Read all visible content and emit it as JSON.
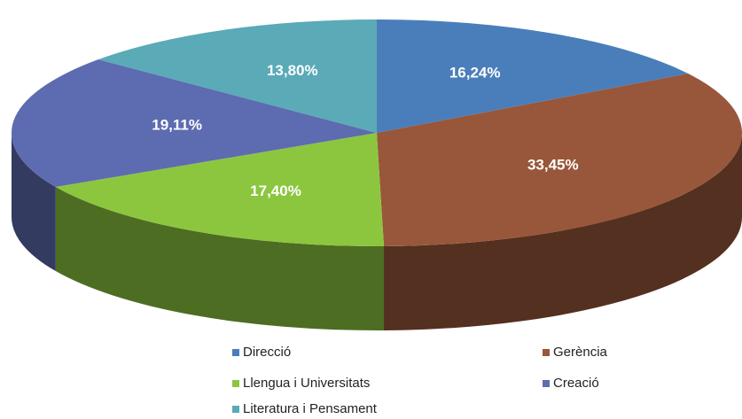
{
  "chart_data": {
    "type": "pie3d",
    "categories": [
      "Direcció",
      "Gerència",
      "Llengua i Universitats",
      "Creació",
      "Literatura i Pensament"
    ],
    "values": [
      16.24,
      33.45,
      17.4,
      19.11,
      13.8
    ],
    "value_labels": [
      "16,24%",
      "33,45%",
      "17,40%",
      "19,11%",
      "13,80%"
    ],
    "colors": [
      "#4a7ebb",
      "#98573a",
      "#8cc63f",
      "#5d6bb0",
      "#5aaab8"
    ]
  }
}
